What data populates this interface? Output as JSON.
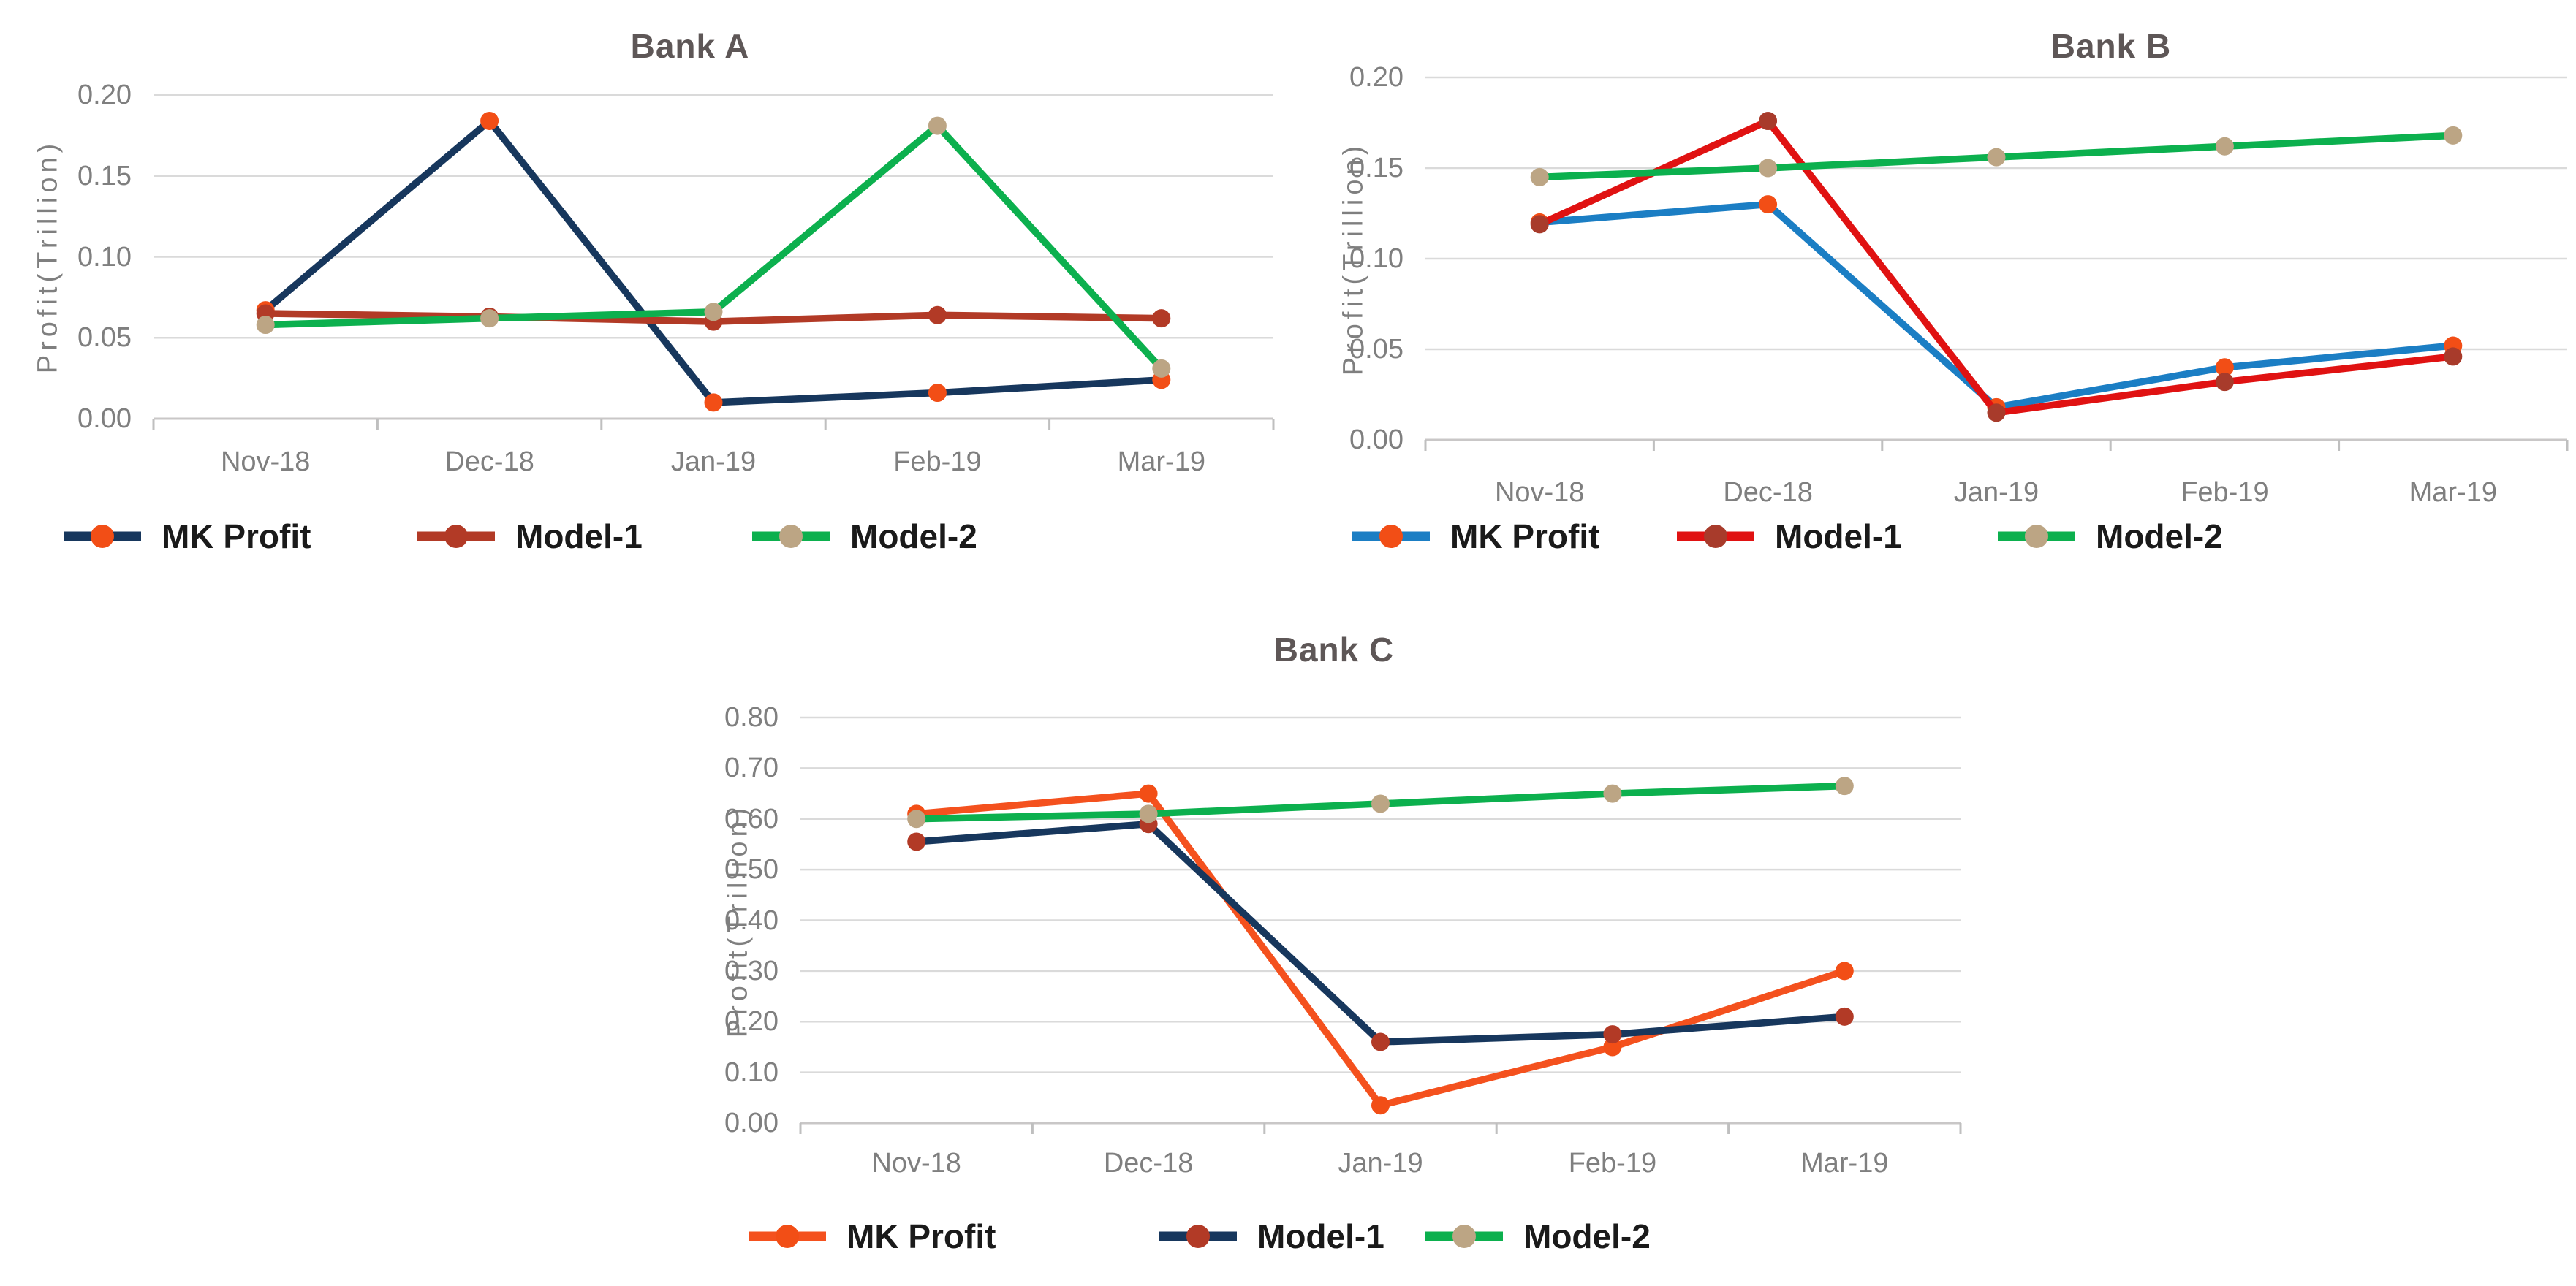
{
  "colors": {
    "background": "#FFFFFF",
    "gridline": "#DADADA",
    "axis_line": "#C9C7C7",
    "tick_mark": "#BFBFBF",
    "tick_label": "#7F7F7F",
    "title_text": "#5E5757",
    "legend_text": "#1A1A1A"
  },
  "chart_data": [
    {
      "type": "line",
      "title": "Bank A",
      "ylabel": "Profit(Trillion)",
      "xlabel": "",
      "grid": true,
      "legend_position": "bottom",
      "categories": [
        "Nov-18",
        "Dec-18",
        "Jan-19",
        "Feb-19",
        "Mar-19"
      ],
      "yticks": [
        "0.00",
        "0.05",
        "0.10",
        "0.15",
        "0.20"
      ],
      "ylim": [
        0,
        0.2
      ],
      "series": [
        {
          "name": "MK Profit",
          "line_color": "#17375D",
          "marker_color": "#F24E16",
          "values": [
            0.067,
            0.184,
            0.01,
            0.016,
            0.024
          ]
        },
        {
          "name": "Model-1",
          "line_color": "#B23A26",
          "marker_color": "#B23A26",
          "values": [
            0.065,
            0.063,
            0.06,
            0.064,
            0.062
          ]
        },
        {
          "name": "Model-2",
          "line_color": "#0CB04E",
          "marker_color": "#BCA584",
          "values": [
            0.058,
            0.062,
            0.066,
            0.181,
            0.031
          ]
        }
      ]
    },
    {
      "type": "line",
      "title": "Bank B",
      "ylabel": "Profit(Trillion)",
      "xlabel": "",
      "grid": true,
      "legend_position": "bottom",
      "categories": [
        "Nov-18",
        "Dec-18",
        "Jan-19",
        "Feb-19",
        "Mar-19"
      ],
      "yticks": [
        "0.00",
        "0.05",
        "0.10",
        "0.15",
        "0.20"
      ],
      "ylim": [
        0,
        0.2
      ],
      "series": [
        {
          "name": "MK Profit",
          "line_color": "#1B7EC4",
          "marker_color": "#F24E16",
          "values": [
            0.12,
            0.13,
            0.018,
            0.04,
            0.052
          ]
        },
        {
          "name": "Model-1",
          "line_color": "#E01212",
          "marker_color": "#A83B2B",
          "values": [
            0.119,
            0.176,
            0.015,
            0.032,
            0.046
          ]
        },
        {
          "name": "Model-2",
          "line_color": "#0CB04E",
          "marker_color": "#BCA584",
          "values": [
            0.145,
            0.15,
            0.156,
            0.162,
            0.168
          ]
        }
      ]
    },
    {
      "type": "line",
      "title": "Bank C",
      "ylabel": "Profit(Trillion)",
      "xlabel": "",
      "grid": true,
      "legend_position": "bottom",
      "categories": [
        "Nov-18",
        "Dec-18",
        "Jan-19",
        "Feb-19",
        "Mar-19"
      ],
      "yticks": [
        "0.00",
        "0.10",
        "0.20",
        "0.30",
        "0.40",
        "0.50",
        "0.60",
        "0.70",
        "0.80"
      ],
      "ylim": [
        0,
        0.8
      ],
      "series": [
        {
          "name": "MK Profit",
          "line_color": "#F4511E",
          "marker_color": "#F24E16",
          "values": [
            0.61,
            0.65,
            0.035,
            0.15,
            0.3
          ]
        },
        {
          "name": "Model-1",
          "line_color": "#17375D",
          "marker_color": "#B23A26",
          "values": [
            0.555,
            0.59,
            0.16,
            0.175,
            0.21
          ]
        },
        {
          "name": "Model-2",
          "line_color": "#0CB04E",
          "marker_color": "#BCA584",
          "values": [
            0.6,
            0.61,
            0.63,
            0.65,
            0.665
          ]
        }
      ]
    }
  ]
}
